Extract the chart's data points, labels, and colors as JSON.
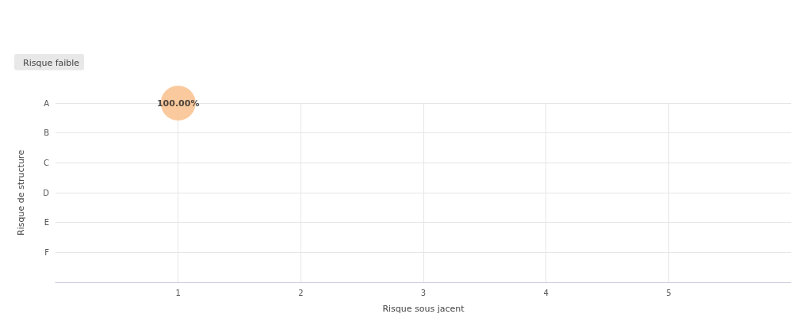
{
  "chart_data": {
    "type": "bubble",
    "orientation": "horizontal",
    "xlabel": "Risque sous jacent",
    "ylabel": "Risque de structure",
    "categories": [
      "A",
      "B",
      "C",
      "D",
      "E",
      "F",
      null
    ],
    "series": [
      {
        "name": "Risque faible",
        "color": "#f9bd86",
        "values": [
          1,
          null,
          null,
          null,
          null,
          null,
          null
        ],
        "sizes": [
          1,
          null,
          null,
          null,
          null,
          null,
          null
        ],
        "value_labels": [
          "100.00%",
          null,
          null,
          null,
          null,
          null,
          null
        ]
      }
    ],
    "xlim": [
      0,
      6
    ],
    "xticks": [
      1,
      2,
      3,
      4,
      5
    ],
    "grid": true,
    "legend": "top left"
  }
}
